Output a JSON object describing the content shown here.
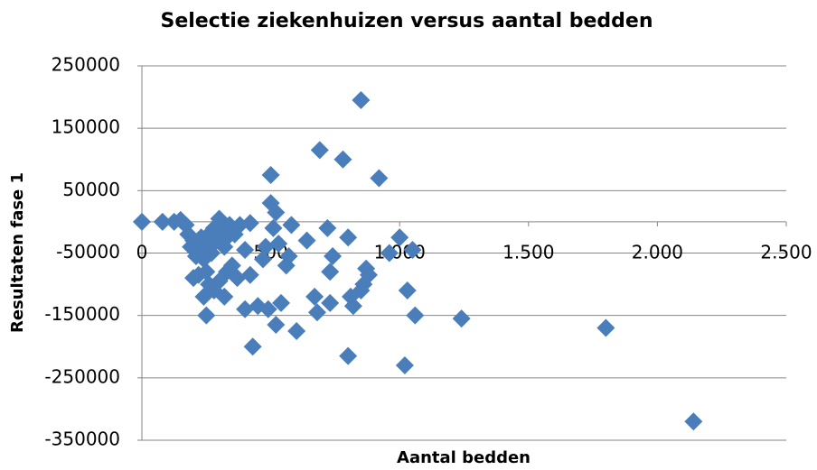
{
  "chart_data": {
    "type": "scatter",
    "title": "Selectie ziekenhuizen versus aantal bedden",
    "x_label": "Aantal bedden",
    "y_label": "Resultaten fase 1",
    "series": [
      {
        "name": "Resultaten fase 1",
        "color": "#4a7ebb",
        "x": [
          0,
          80,
          125,
          150,
          170,
          180,
          190,
          200,
          210,
          220,
          230,
          240,
          250,
          260,
          270,
          280,
          290,
          300,
          310,
          320,
          330,
          340,
          350,
          360,
          380,
          400,
          420,
          200,
          220,
          250,
          260,
          240,
          250,
          280,
          300,
          320,
          330,
          350,
          370,
          400,
          420,
          430,
          450,
          470,
          480,
          490,
          500,
          500,
          510,
          520,
          530,
          520,
          540,
          560,
          570,
          580,
          600,
          640,
          670,
          680,
          690,
          720,
          730,
          730,
          740,
          780,
          800,
          800,
          810,
          820,
          850,
          850,
          860,
          870,
          880,
          920,
          960,
          1000,
          1020,
          1030,
          1050,
          1060,
          1240,
          1800,
          2140
        ],
        "values": [
          0,
          0,
          0,
          3000,
          -5000,
          -20000,
          -40000,
          -30000,
          -55000,
          -45000,
          -25000,
          -60000,
          -35000,
          -20000,
          -50000,
          -10000,
          -30000,
          5000,
          -15000,
          -40000,
          -25000,
          -5000,
          -10000,
          -20000,
          -5000,
          -45000,
          -2000,
          -90000,
          -85000,
          -80000,
          -100000,
          -120000,
          -150000,
          -110000,
          -95000,
          -120000,
          -80000,
          -70000,
          -90000,
          -140000,
          -85000,
          -200000,
          -135000,
          -60000,
          -40000,
          -140000,
          75000,
          30000,
          -10000,
          15000,
          -35000,
          -165000,
          -130000,
          -70000,
          -55000,
          -5000,
          -175000,
          -30000,
          -120000,
          -145000,
          115000,
          -10000,
          -130000,
          -80000,
          -55000,
          100000,
          -25000,
          -215000,
          -120000,
          -135000,
          195000,
          -110000,
          -100000,
          -75000,
          -85000,
          70000,
          -50000,
          -25000,
          -230000,
          -110000,
          -45000,
          -150000,
          -155000,
          -170000,
          -320000
        ]
      }
    ],
    "xlim": [
      0,
      2500
    ],
    "xticks": [
      0,
      500,
      {
        "value": 1000,
        "label": "1.000"
      },
      {
        "value": 1500,
        "label": "1.500"
      },
      {
        "value": 2000,
        "label": "2.000"
      },
      {
        "value": 2500,
        "label": "2.500"
      }
    ],
    "ylim": [
      -350000,
      250000
    ],
    "yticks": [
      250000,
      150000,
      50000,
      -50000,
      -150000,
      -250000,
      -350000
    ],
    "grid": true
  }
}
